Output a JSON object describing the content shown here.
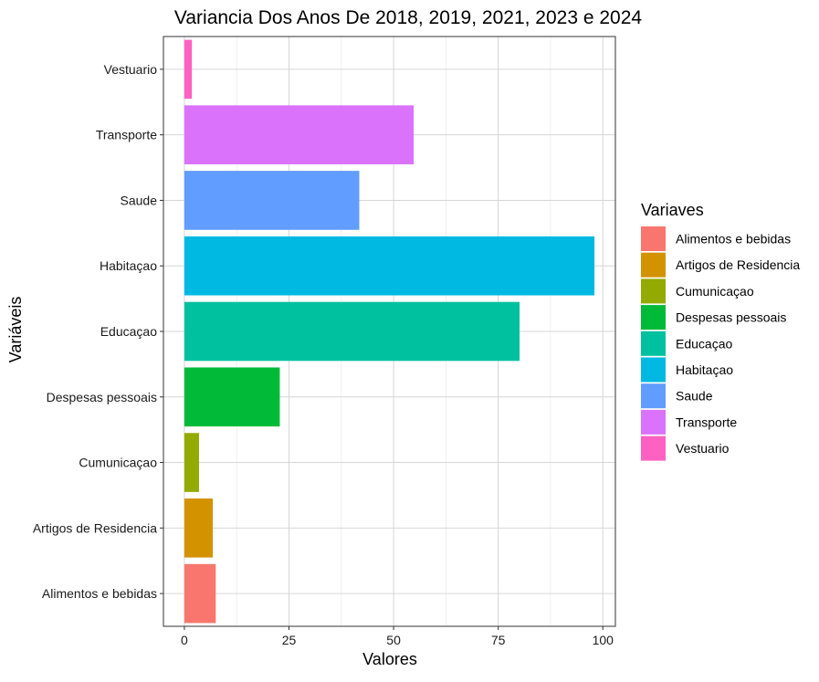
{
  "chart_data": {
    "type": "bar",
    "orientation": "horizontal",
    "title": "Variancia Dos Anos De  2018, 2019, 2021, 2023 e 2024",
    "xlabel": "Valores",
    "ylabel": "Variáveis",
    "xlim": [
      -5,
      103
    ],
    "xticks": [
      0,
      25,
      50,
      75,
      100
    ],
    "grid": true,
    "categories": [
      "Alimentos e bebidas",
      "Artigos de Residencia",
      "Cumunicaçao",
      "Despesas pessoais",
      "Educaçao",
      "Habitaçao",
      "Saude",
      "Transporte",
      "Vestuario"
    ],
    "values": [
      7.5,
      6.8,
      3.5,
      22.8,
      80.1,
      98.0,
      41.8,
      54.8,
      1.8
    ],
    "colors": [
      "#F8766D",
      "#D39200",
      "#93AA00",
      "#00BA38",
      "#00C19F",
      "#00B9E3",
      "#619CFF",
      "#DB72FB",
      "#FF61C3"
    ],
    "legend": {
      "title": "Variaves",
      "position": "right"
    }
  }
}
